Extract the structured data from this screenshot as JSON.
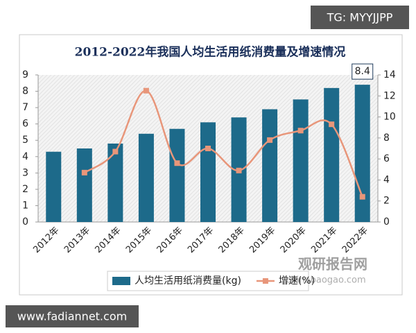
{
  "chart_data": {
    "type": "bar-line",
    "title": "2012-2022年我国人均生活用纸消费量及增速情况",
    "categories": [
      "2012年",
      "2013年",
      "2014年",
      "2015年",
      "2016年",
      "2017年",
      "2018年",
      "2019年",
      "2020年",
      "2021年",
      "2022年"
    ],
    "series": [
      {
        "name": "人均生活用纸消费量(kg)",
        "type": "bar",
        "color": "#1d6a8a",
        "axis": "y",
        "values": [
          4.3,
          4.5,
          4.8,
          5.4,
          5.7,
          6.1,
          6.4,
          6.9,
          7.5,
          8.2,
          8.4
        ],
        "value_labels": [
          null,
          null,
          null,
          null,
          null,
          null,
          null,
          null,
          null,
          null,
          "8.4"
        ]
      },
      {
        "name": "增速(%)",
        "type": "line",
        "color": "#e8967a",
        "axis": "y2",
        "values": [
          null,
          4.7,
          6.7,
          12.5,
          5.6,
          7.0,
          4.9,
          7.8,
          8.7,
          9.3,
          2.4
        ]
      }
    ],
    "ylim": [
      0,
      9
    ],
    "yticks": [
      0,
      1,
      2,
      3,
      4,
      5,
      6,
      7,
      8,
      9
    ],
    "y2lim": [
      0,
      14
    ],
    "y2ticks": [
      0,
      2,
      4,
      6,
      8,
      10,
      12,
      14
    ],
    "legend": "bottom"
  },
  "watermarks": {
    "top_right": "TG: MYYJJPP",
    "bottom_left": "www.fadiannet.com",
    "logo": "观研报告网",
    "site": "chinabaogao.com"
  }
}
